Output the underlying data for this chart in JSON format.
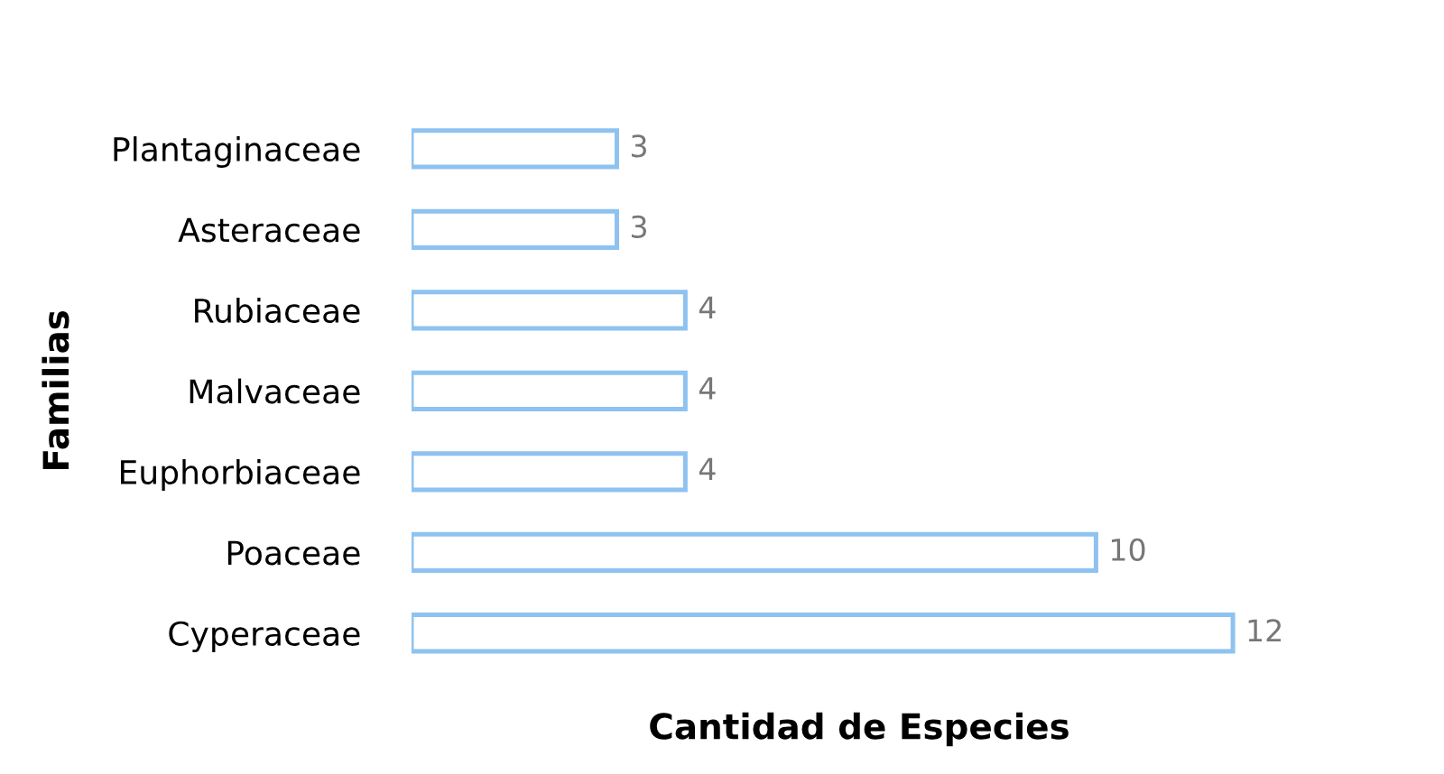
{
  "chart_data": {
    "type": "bar",
    "orientation": "horizontal",
    "categories": [
      "Plantaginaceae",
      "Asteraceae",
      "Rubiaceae",
      "Malvaceae",
      "Euphorbiaceae",
      "Poaceae",
      "Cyperaceae"
    ],
    "values": [
      3,
      3,
      4,
      4,
      4,
      10,
      12
    ],
    "color": "#ffffff",
    "xlabel": "Cantidad de Especies",
    "ylabel": "Familias",
    "data_labels": true,
    "tick_labels": "y",
    "grid": false,
    "legend": false
  }
}
